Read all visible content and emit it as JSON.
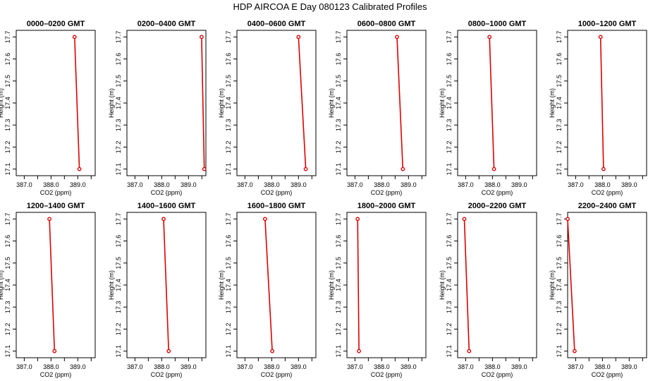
{
  "page": {
    "title": "HDP AIRCOA E  Day 080123  Calibrated Profiles"
  },
  "axes": {
    "xlabel": "CO2 (ppm)",
    "ylabel": "Height (m)",
    "xticks": [
      "387.0",
      "388.0",
      "389.0"
    ],
    "yticks": [
      "17.1",
      "17.2",
      "17.3",
      "17.4",
      "17.5",
      "17.6",
      "17.7"
    ]
  },
  "colors": {
    "series": "#dd0000",
    "axis": "#000000"
  },
  "chart_data": [
    {
      "type": "line",
      "title": "0000–0200 GMT",
      "x": [
        388.88,
        389.06
      ],
      "y": [
        17.7,
        17.1
      ],
      "xlim": [
        386.7,
        389.65
      ],
      "ylim": [
        17.07,
        17.73
      ],
      "xlabel": "CO2 (ppm)",
      "ylabel": "Height (m)"
    },
    {
      "type": "line",
      "title": "0200–0400 GMT",
      "x": [
        389.49,
        389.59
      ],
      "y": [
        17.7,
        17.1
      ],
      "xlim": [
        386.7,
        389.65
      ],
      "ylim": [
        17.07,
        17.73
      ],
      "xlabel": "CO2 (ppm)",
      "ylabel": "Height (m)"
    },
    {
      "type": "line",
      "title": "0400–0600 GMT",
      "x": [
        389.0,
        389.27
      ],
      "y": [
        17.7,
        17.1
      ],
      "xlim": [
        386.7,
        389.65
      ],
      "ylim": [
        17.07,
        17.73
      ],
      "xlabel": "CO2 (ppm)",
      "ylabel": "Height (m)"
    },
    {
      "type": "line",
      "title": "0600–0800 GMT",
      "x": [
        388.57,
        388.79
      ],
      "y": [
        17.7,
        17.1
      ],
      "xlim": [
        386.7,
        389.65
      ],
      "ylim": [
        17.07,
        17.73
      ],
      "xlabel": "CO2 (ppm)",
      "ylabel": "Height (m)"
    },
    {
      "type": "line",
      "title": "0800–1000 GMT",
      "x": [
        387.89,
        388.06
      ],
      "y": [
        17.7,
        17.1
      ],
      "xlim": [
        386.7,
        389.65
      ],
      "ylim": [
        17.07,
        17.73
      ],
      "xlabel": "CO2 (ppm)",
      "ylabel": "Height (m)"
    },
    {
      "type": "line",
      "title": "1000–1200 GMT",
      "x": [
        387.93,
        388.04
      ],
      "y": [
        17.7,
        17.1
      ],
      "xlim": [
        386.7,
        389.65
      ],
      "ylim": [
        17.07,
        17.73
      ],
      "xlabel": "CO2 (ppm)",
      "ylabel": "Height (m)"
    },
    {
      "type": "line",
      "title": "1200–1400 GMT",
      "x": [
        387.94,
        388.13
      ],
      "y": [
        17.7,
        17.1
      ],
      "xlim": [
        386.7,
        389.65
      ],
      "ylim": [
        17.07,
        17.73
      ],
      "xlabel": "CO2 (ppm)",
      "ylabel": "Height (m)"
    },
    {
      "type": "line",
      "title": "1400–1600 GMT",
      "x": [
        388.07,
        388.26
      ],
      "y": [
        17.7,
        17.1
      ],
      "xlim": [
        386.7,
        389.65
      ],
      "ylim": [
        17.07,
        17.73
      ],
      "xlabel": "CO2 (ppm)",
      "ylabel": "Height (m)"
    },
    {
      "type": "line",
      "title": "1600–1800 GMT",
      "x": [
        387.75,
        388.02
      ],
      "y": [
        17.7,
        17.1
      ],
      "xlim": [
        386.7,
        389.65
      ],
      "ylim": [
        17.07,
        17.73
      ],
      "xlabel": "CO2 (ppm)",
      "ylabel": "Height (m)"
    },
    {
      "type": "line",
      "title": "1800–2000 GMT",
      "x": [
        387.1,
        387.15
      ],
      "y": [
        17.7,
        17.1
      ],
      "xlim": [
        386.7,
        389.65
      ],
      "ylim": [
        17.07,
        17.73
      ],
      "xlabel": "CO2 (ppm)",
      "ylabel": "Height (m)"
    },
    {
      "type": "line",
      "title": "2000–2200 GMT",
      "x": [
        386.95,
        387.13
      ],
      "y": [
        17.7,
        17.1
      ],
      "xlim": [
        386.7,
        389.65
      ],
      "ylim": [
        17.07,
        17.73
      ],
      "xlabel": "CO2 (ppm)",
      "ylabel": "Height (m)"
    },
    {
      "type": "line",
      "title": "2200–2400 GMT",
      "x": [
        386.7,
        386.96
      ],
      "y": [
        17.7,
        17.1
      ],
      "xlim": [
        386.7,
        389.65
      ],
      "ylim": [
        17.07,
        17.73
      ],
      "xlabel": "CO2 (ppm)",
      "ylabel": "Height (m)"
    }
  ]
}
